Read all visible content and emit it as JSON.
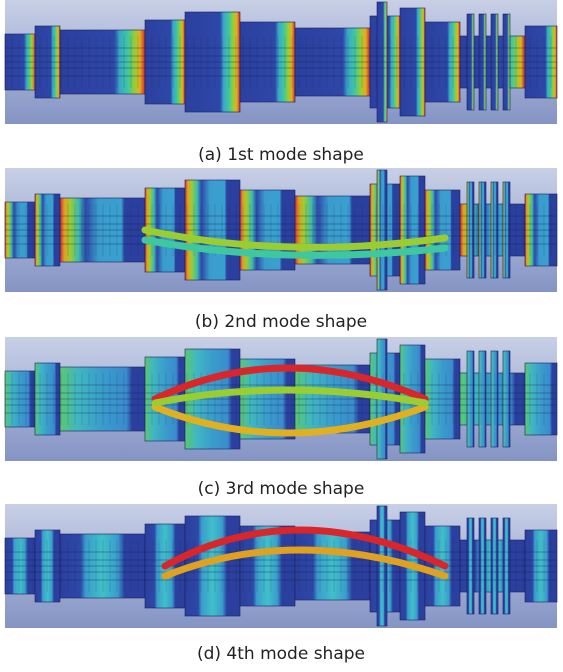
{
  "figure": {
    "panels": [
      {
        "caption": "(a) 1st mode shape"
      },
      {
        "caption": "(b) 2nd mode shape"
      },
      {
        "caption": "(c) 3rd mode shape"
      },
      {
        "caption": "(d) 4th mode shape"
      }
    ]
  }
}
